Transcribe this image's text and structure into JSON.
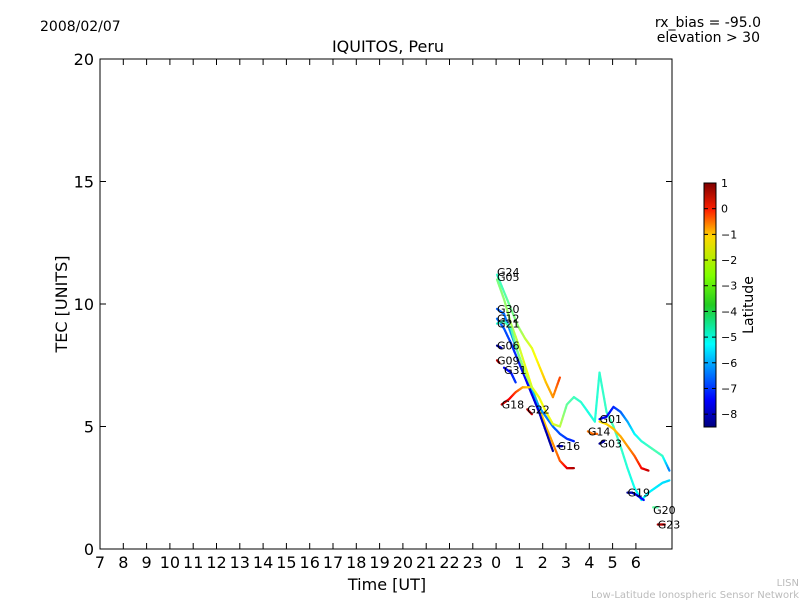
{
  "header": {
    "date": "2008/02/07",
    "bias": "rx_bias = -95.0",
    "elevation": "elevation > 30"
  },
  "footer": {
    "line1": "LISN",
    "line2": "Low-Latitude Ionospheric Sensor Network"
  },
  "chart_data": {
    "type": "scatter",
    "title": "IQUITOS, Peru",
    "xlabel": "Time [UT]",
    "ylabel": "TEC [UNITS]",
    "ylim": [
      0,
      20
    ],
    "x_ticks": [
      "7",
      "8",
      "9",
      "10",
      "11",
      "12",
      "13",
      "14",
      "15",
      "16",
      "17",
      "18",
      "19",
      "20",
      "21",
      "22",
      "23",
      "0",
      "1",
      "2",
      "3",
      "4",
      "5",
      "6"
    ],
    "y_ticks": [
      0,
      5,
      10,
      15,
      20
    ],
    "colorbar": {
      "label": "Latitude",
      "range": [
        -8.5,
        1
      ],
      "ticks": [
        1,
        0,
        -1,
        -2,
        -3,
        -4,
        -5,
        -6,
        -7,
        -8
      ],
      "colormap": "jet"
    },
    "satellite_labels": [
      {
        "name": "G24",
        "x": 0.0,
        "y": 11.3
      },
      {
        "name": "G05",
        "x": 0.0,
        "y": 11.1
      },
      {
        "name": "G30",
        "x": 0.0,
        "y": 9.8
      },
      {
        "name": "G12",
        "x": 0.0,
        "y": 9.4
      },
      {
        "name": "G21",
        "x": 0.0,
        "y": 9.2
      },
      {
        "name": "G06",
        "x": 0.0,
        "y": 8.3
      },
      {
        "name": "G09",
        "x": 0.0,
        "y": 7.7
      },
      {
        "name": "G31",
        "x": 0.3,
        "y": 7.3
      },
      {
        "name": "G18",
        "x": 0.2,
        "y": 5.9
      },
      {
        "name": "G22",
        "x": 1.3,
        "y": 5.7
      },
      {
        "name": "G16",
        "x": 2.6,
        "y": 4.2
      },
      {
        "name": "G14",
        "x": 3.9,
        "y": 4.8
      },
      {
        "name": "G01",
        "x": 4.4,
        "y": 5.3
      },
      {
        "name": "G03",
        "x": 4.4,
        "y": 4.3
      },
      {
        "name": "G19",
        "x": 5.6,
        "y": 2.3
      },
      {
        "name": "G20",
        "x": 6.7,
        "y": 1.6
      },
      {
        "name": "G23",
        "x": 6.9,
        "y": 1.0
      }
    ],
    "series": [
      {
        "name": "G24",
        "points": [
          [
            0.0,
            11.2,
            -4.5
          ],
          [
            0.3,
            10.5,
            -4.2
          ],
          [
            0.6,
            9.8,
            -3.9
          ],
          [
            0.9,
            9.1,
            -3.6
          ],
          [
            1.2,
            8.6,
            -3.2
          ],
          [
            1.5,
            8.2,
            -2.8
          ],
          [
            1.8,
            7.5,
            -2.4
          ],
          [
            2.1,
            6.8,
            -2.0
          ],
          [
            2.4,
            6.2,
            -1.6
          ],
          [
            2.7,
            7.0,
            -0.8
          ]
        ]
      },
      {
        "name": "G05",
        "points": [
          [
            0.0,
            11.0,
            -3.8
          ],
          [
            0.3,
            10.2,
            -3.6
          ],
          [
            0.6,
            9.2,
            -3.4
          ],
          [
            0.9,
            8.4,
            -3.1
          ],
          [
            1.2,
            7.5,
            -2.8
          ],
          [
            1.5,
            6.6,
            -2.5
          ],
          [
            1.8,
            5.8,
            -2.2
          ],
          [
            2.1,
            5.0,
            -2.0
          ],
          [
            2.4,
            4.3,
            -1.6
          ],
          [
            2.7,
            3.6,
            -1.0
          ],
          [
            3.0,
            3.3,
            0.0
          ],
          [
            3.3,
            3.3,
            0.6
          ]
        ]
      },
      {
        "name": "G30",
        "points": [
          [
            0.0,
            9.8,
            -6.5
          ],
          [
            0.3,
            9.6,
            -6.3
          ],
          [
            0.6,
            8.8,
            -6.0
          ],
          [
            0.9,
            8.0,
            -5.7
          ],
          [
            1.2,
            7.2,
            -5.4
          ],
          [
            1.5,
            6.5,
            -5.5
          ],
          [
            1.8,
            5.8,
            -5.8
          ],
          [
            2.1,
            5.4,
            -6.1
          ],
          [
            2.4,
            5.0,
            -6.3
          ],
          [
            2.7,
            4.7,
            -6.6
          ],
          [
            3.0,
            4.5,
            -6.8
          ],
          [
            3.3,
            4.4,
            -7.0
          ]
        ]
      },
      {
        "name": "G12",
        "points": [
          [
            0.0,
            9.4,
            -6.3
          ],
          [
            0.3,
            9.0,
            -6.5
          ],
          [
            0.6,
            8.4,
            -6.8
          ],
          [
            0.9,
            7.7,
            -7.0
          ],
          [
            1.2,
            7.0,
            -7.3
          ],
          [
            1.5,
            6.3,
            -7.5
          ],
          [
            1.8,
            5.6,
            -7.7
          ],
          [
            2.1,
            4.8,
            -8.0
          ],
          [
            2.4,
            4.0,
            -8.3
          ]
        ]
      },
      {
        "name": "G21",
        "points": [
          [
            0.0,
            9.2,
            -4.6
          ],
          [
            0.3,
            9.3,
            -4.4
          ],
          [
            0.6,
            9.0,
            -4.2
          ],
          [
            0.9,
            8.0,
            -3.8
          ],
          [
            1.2,
            7.2,
            -3.4
          ],
          [
            1.5,
            6.6,
            -3.0
          ],
          [
            1.8,
            6.2,
            -2.7
          ],
          [
            2.1,
            5.6,
            -2.6
          ],
          [
            2.4,
            5.1,
            -2.8
          ],
          [
            2.7,
            5.0,
            -3.1
          ],
          [
            3.0,
            5.9,
            -4.0
          ],
          [
            3.3,
            6.2,
            -4.3
          ],
          [
            3.6,
            6.0,
            -4.5
          ],
          [
            3.9,
            5.6,
            -4.7
          ],
          [
            4.2,
            5.2,
            -4.6
          ],
          [
            4.4,
            7.2,
            -4.5
          ],
          [
            4.7,
            5.6,
            -4.4
          ],
          [
            5.0,
            5.0,
            -4.3
          ],
          [
            5.3,
            4.2,
            -4.4
          ],
          [
            5.6,
            3.3,
            -4.6
          ],
          [
            5.9,
            2.5,
            -4.8
          ],
          [
            6.2,
            2.0,
            -5.0
          ],
          [
            6.5,
            2.3,
            -5.0
          ],
          [
            6.8,
            2.5,
            -5.1
          ],
          [
            7.1,
            2.7,
            -5.2
          ],
          [
            7.4,
            2.8,
            -5.3
          ]
        ]
      },
      {
        "name": "G06",
        "points": [
          [
            0.0,
            8.3,
            -8.3
          ],
          [
            0.2,
            8.2,
            -8.0
          ]
        ]
      },
      {
        "name": "G09",
        "points": [
          [
            0.0,
            7.7,
            0.4
          ],
          [
            0.1,
            7.6,
            0.6
          ]
        ]
      },
      {
        "name": "G31",
        "points": [
          [
            0.3,
            7.4,
            -7.4
          ],
          [
            0.6,
            7.2,
            -7.2
          ],
          [
            0.8,
            6.8,
            -6.8
          ]
        ]
      },
      {
        "name": "G18",
        "points": [
          [
            0.2,
            5.9,
            0.4
          ],
          [
            0.5,
            6.1,
            0.0
          ],
          [
            0.8,
            6.4,
            -0.7
          ],
          [
            1.1,
            6.6,
            -1.6
          ],
          [
            1.4,
            6.6,
            -2.2
          ]
        ]
      },
      {
        "name": "G22",
        "points": [
          [
            1.3,
            5.7,
            0.6
          ],
          [
            1.5,
            5.5,
            0.3
          ]
        ]
      },
      {
        "name": "G16",
        "points": [
          [
            2.6,
            4.2,
            -8.3
          ],
          [
            2.8,
            4.2,
            -8.0
          ]
        ]
      },
      {
        "name": "G14",
        "points": [
          [
            3.9,
            4.8,
            -1.3
          ],
          [
            4.1,
            4.7,
            -1.2
          ],
          [
            4.3,
            4.7,
            -1.1
          ]
        ]
      },
      {
        "name": "G01",
        "points": [
          [
            4.4,
            5.3,
            -7.5
          ],
          [
            4.7,
            5.4,
            -7.3
          ],
          [
            5.0,
            5.8,
            -7.0
          ],
          [
            5.3,
            5.6,
            -6.5
          ],
          [
            5.6,
            5.2,
            -5.8
          ],
          [
            5.9,
            4.7,
            -5.0
          ],
          [
            6.2,
            4.4,
            -4.6
          ],
          [
            6.5,
            4.2,
            -4.4
          ],
          [
            6.8,
            4.0,
            -4.2
          ],
          [
            7.1,
            3.8,
            -4.4
          ],
          [
            7.4,
            3.2,
            -6.2
          ]
        ]
      },
      {
        "name": "G01b",
        "points": [
          [
            4.4,
            5.2,
            -2.4
          ],
          [
            4.7,
            5.1,
            -2.2
          ],
          [
            5.0,
            4.9,
            -2.0
          ],
          [
            5.3,
            4.6,
            -1.8
          ],
          [
            5.6,
            4.2,
            -1.6
          ],
          [
            5.9,
            3.8,
            -1.1
          ],
          [
            6.2,
            3.3,
            -0.3
          ],
          [
            6.5,
            3.2,
            0.4
          ]
        ]
      },
      {
        "name": "G03",
        "points": [
          [
            4.4,
            4.3,
            -8.4
          ],
          [
            4.6,
            4.4,
            -8.2
          ]
        ]
      },
      {
        "name": "G19",
        "points": [
          [
            5.6,
            2.3,
            -8.4
          ],
          [
            5.8,
            2.3,
            -8.0
          ],
          [
            6.0,
            2.2,
            -7.6
          ],
          [
            6.3,
            2.0,
            -7.2
          ]
        ]
      },
      {
        "name": "G20",
        "points": [
          [
            6.7,
            1.7,
            -4.0
          ],
          [
            6.9,
            1.7,
            -4.2
          ]
        ]
      },
      {
        "name": "G23",
        "points": [
          [
            6.9,
            1.0,
            0.6
          ],
          [
            7.2,
            1.0,
            0.4
          ]
        ]
      }
    ]
  }
}
